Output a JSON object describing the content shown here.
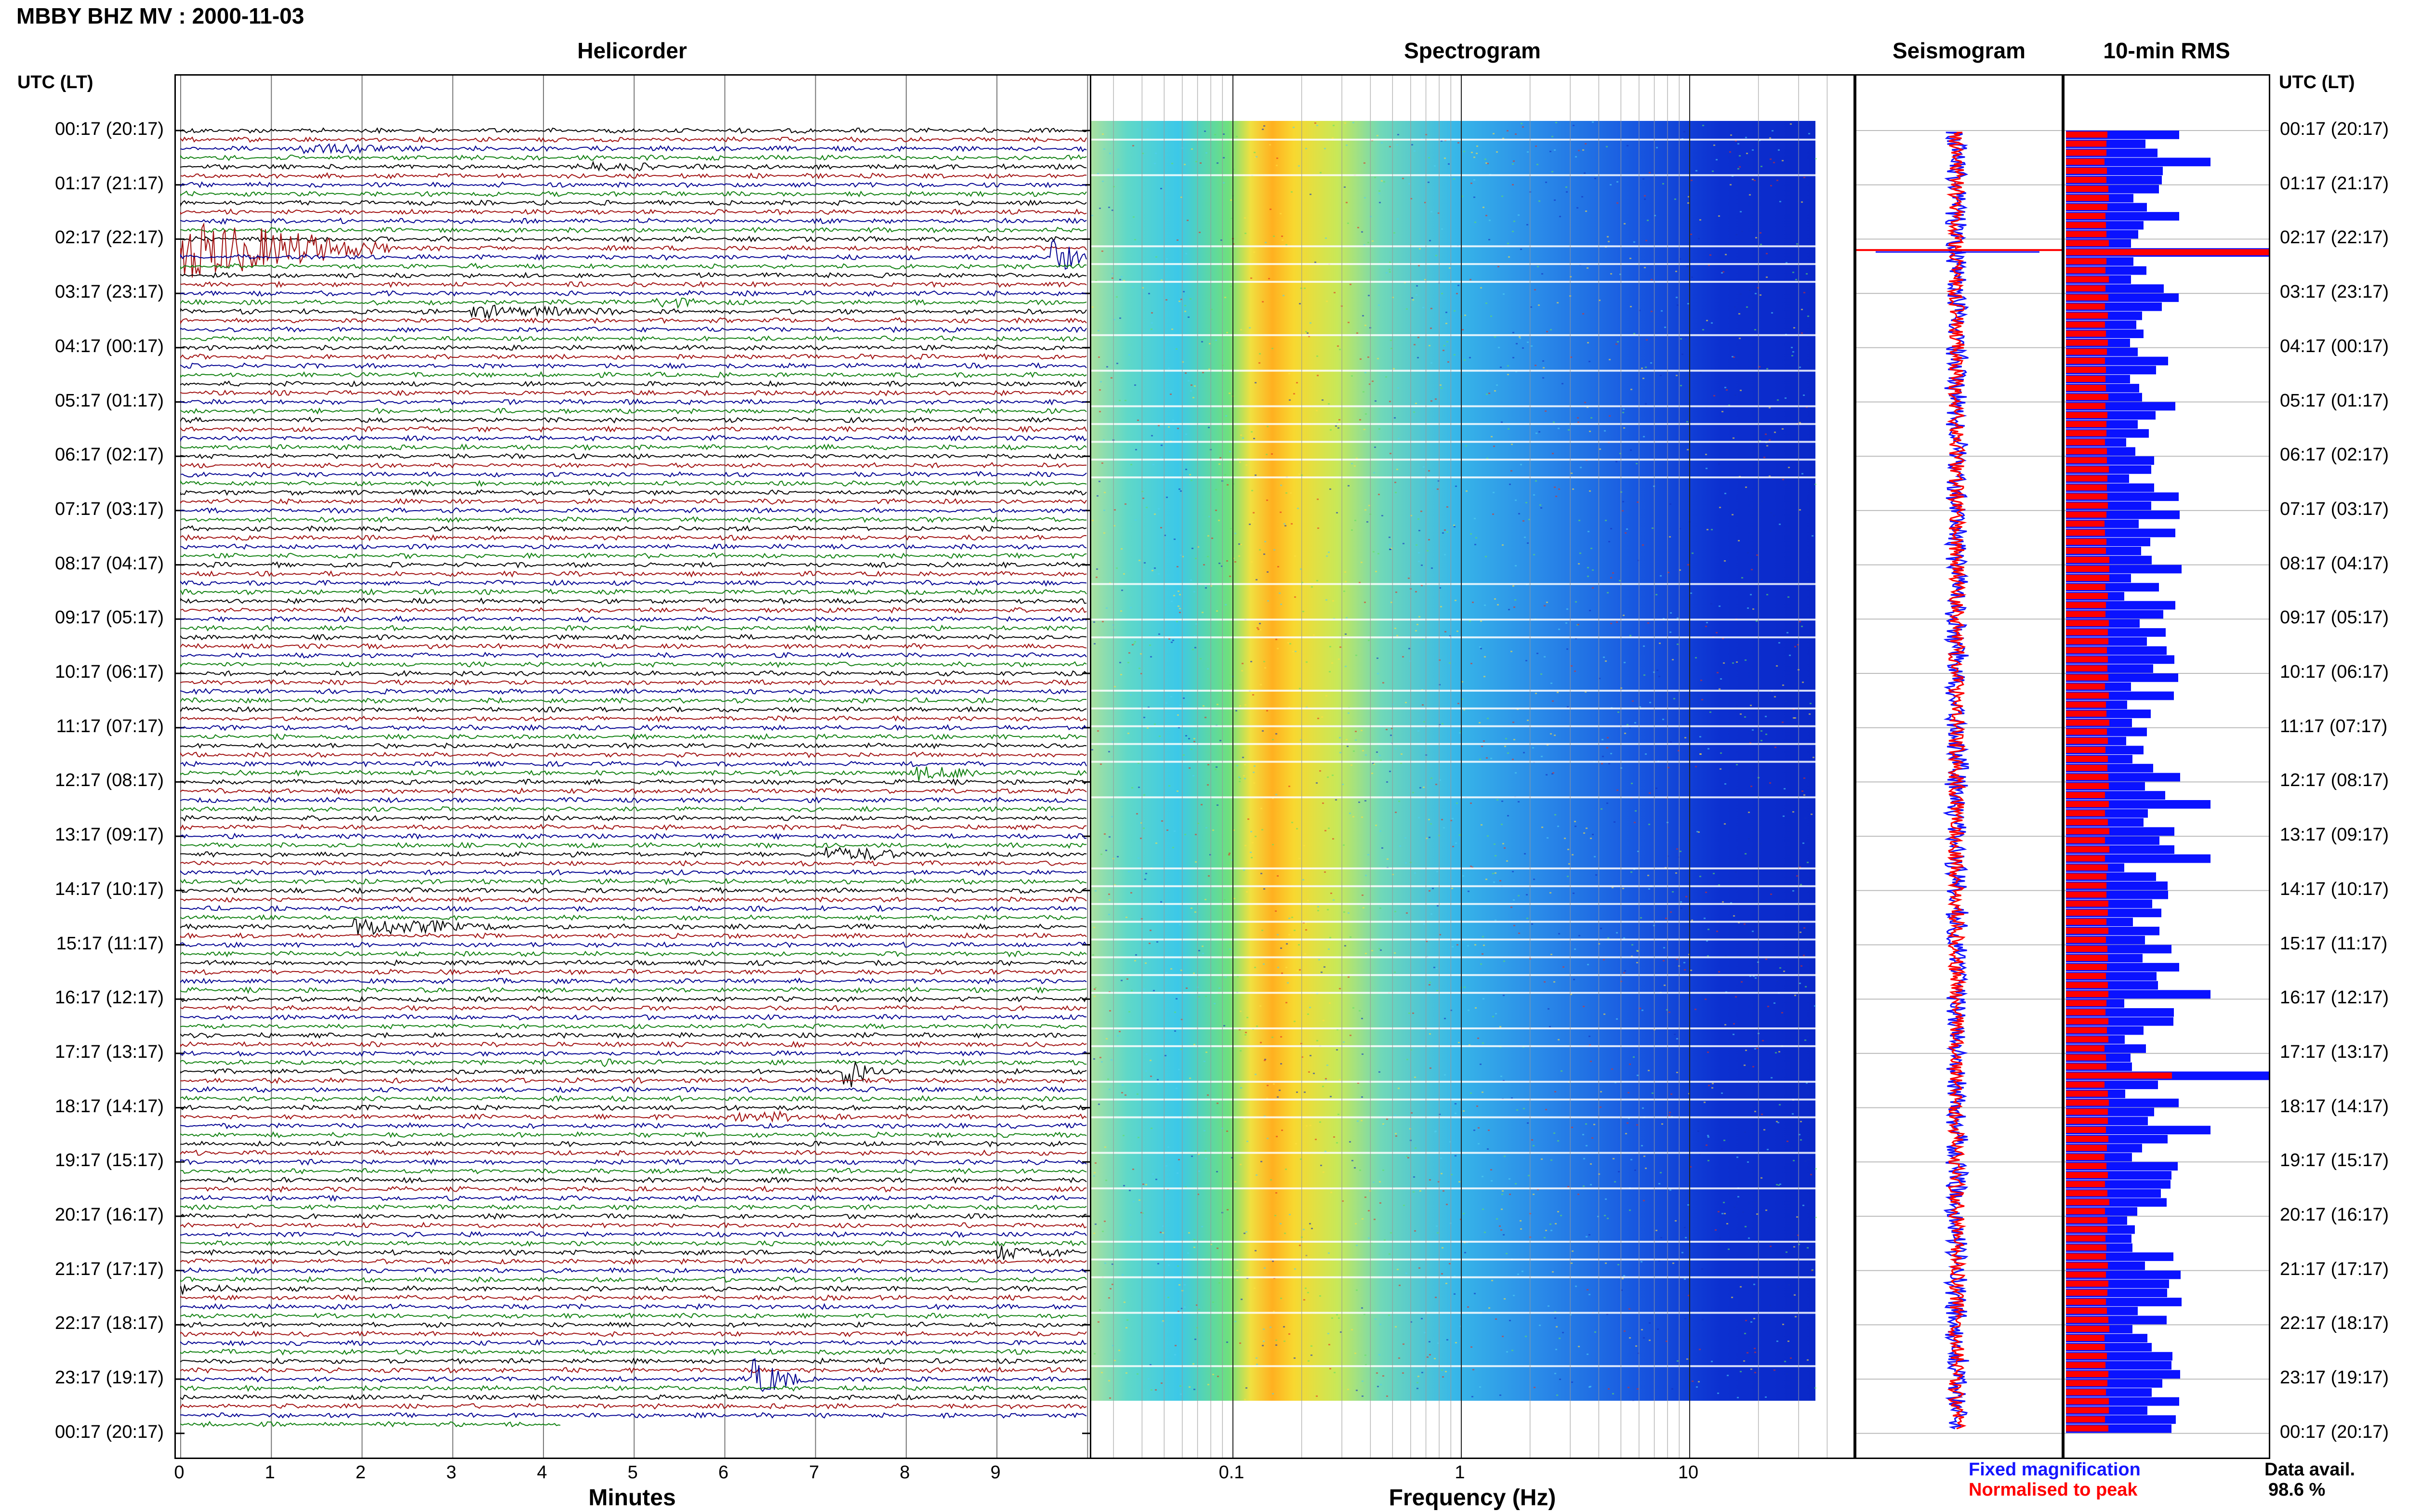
{
  "page": {
    "title": "MBBY BHZ MV : 2000-11-03"
  },
  "panels": {
    "helicorder": "Helicorder",
    "spectrogram": "Spectrogram",
    "seismogram": "Seismogram",
    "rms": "10-min RMS"
  },
  "axes": {
    "utc_header_left": "UTC (LT)",
    "utc_header_right": "UTC (LT)",
    "helicorder_xlabel": "Minutes",
    "spectrogram_xlabel": "Frequency (Hz)",
    "minute_ticks": [
      "0",
      "1",
      "2",
      "3",
      "4",
      "5",
      "6",
      "7",
      "8",
      "9"
    ],
    "freq_ticks": [
      "0.1",
      "1",
      "10"
    ],
    "time_labels": [
      "00:17 (20:17)",
      "01:17 (21:17)",
      "02:17 (22:17)",
      "03:17 (23:17)",
      "04:17 (00:17)",
      "05:17 (01:17)",
      "06:17 (02:17)",
      "07:17 (03:17)",
      "08:17 (04:17)",
      "09:17 (05:17)",
      "10:17 (06:17)",
      "11:17 (07:17)",
      "12:17 (08:17)",
      "13:17 (09:17)",
      "14:17 (10:17)",
      "15:17 (11:17)",
      "16:17 (12:17)",
      "17:17 (13:17)",
      "18:17 (14:17)",
      "19:17 (15:17)",
      "20:17 (16:17)",
      "21:17 (17:17)",
      "22:17 (18:17)",
      "23:17 (19:17)",
      "00:17 (20:17)"
    ]
  },
  "legend": {
    "fixed": "Fixed magnification",
    "normalised": "Normalised to peak",
    "fixed_color": "#1515ff",
    "normalised_color": "#ff0000",
    "data_avail_label": "Data avail.",
    "data_avail_value": "98.6 %"
  },
  "colors": {
    "trace_cycle": [
      "#000000",
      "#a01010",
      "#000090",
      "#108010"
    ],
    "rms_blue": "#0a12ff",
    "rms_red": "#ff0000"
  }
}
